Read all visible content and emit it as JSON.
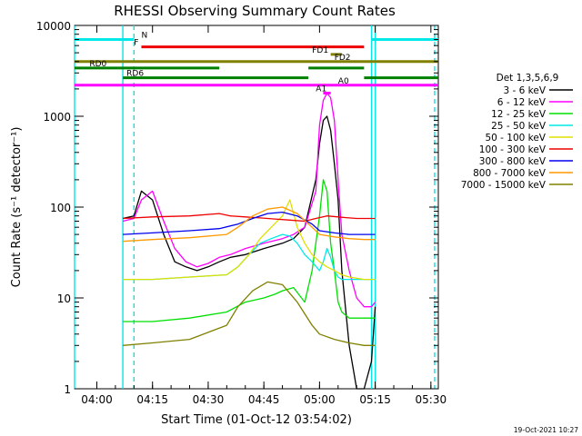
{
  "chart_data": {
    "type": "line",
    "title": "RHESSI Observing Summary Count Rates",
    "xlabel": "Start Time (01-Oct-12 03:54:02)",
    "ylabel": "Count Rate (s⁻¹ detector⁻¹)",
    "yscale": "log",
    "ylim": [
      1,
      10000
    ],
    "xlim": [
      "03:54",
      "05:32"
    ],
    "x_ticks": [
      "04:00",
      "04:15",
      "04:30",
      "04:45",
      "05:00",
      "05:15",
      "05:30"
    ],
    "y_ticks": [
      "1",
      "10",
      "100",
      "1000",
      "10000"
    ],
    "legend_title": "Det 1,3,5,6,9",
    "legend_position": "right",
    "footer_date": "19-Oct-2021 10:27",
    "series": [
      {
        "name": "3 - 6 keV",
        "color": "#000000",
        "x": [
          "04:07",
          "04:10",
          "04:12",
          "04:15",
          "04:18",
          "04:21",
          "04:24",
          "04:27",
          "04:30",
          "04:33",
          "04:36",
          "04:40",
          "04:45",
          "04:50",
          "04:53",
          "04:56",
          "04:59",
          "05:00",
          "05:01",
          "05:02",
          "05:03",
          "05:04",
          "05:05",
          "05:06",
          "05:08",
          "05:10",
          "05:12",
          "05:14",
          "05:15"
        ],
        "y": [
          75,
          80,
          150,
          120,
          50,
          25,
          22,
          20,
          22,
          25,
          28,
          30,
          35,
          40,
          45,
          60,
          200,
          500,
          900,
          1000,
          700,
          300,
          120,
          20,
          3,
          1,
          1,
          2,
          8
        ]
      },
      {
        "name": "6 - 12 keV",
        "color": "#ff00ff",
        "x": [
          "04:07",
          "04:10",
          "04:12",
          "04:15",
          "04:18",
          "04:21",
          "04:24",
          "04:27",
          "04:30",
          "04:33",
          "04:36",
          "04:40",
          "04:45",
          "04:50",
          "04:53",
          "04:56",
          "04:59",
          "05:00",
          "05:01",
          "05:02",
          "05:03",
          "05:04",
          "05:05",
          "05:06",
          "05:08",
          "05:10",
          "05:12",
          "05:14",
          "05:15"
        ],
        "y": [
          70,
          75,
          120,
          150,
          70,
          35,
          25,
          22,
          24,
          28,
          30,
          35,
          40,
          45,
          50,
          60,
          150,
          800,
          1500,
          1800,
          1600,
          900,
          200,
          50,
          20,
          10,
          8,
          8,
          9
        ]
      },
      {
        "name": "12 - 25 keV",
        "color": "#00e000",
        "x": [
          "04:07",
          "04:15",
          "04:25",
          "04:35",
          "04:40",
          "04:45",
          "04:48",
          "04:50",
          "04:53",
          "04:56",
          "04:58",
          "05:00",
          "05:01",
          "05:02",
          "05:03",
          "05:04",
          "05:05",
          "05:06",
          "05:08",
          "05:12",
          "05:14",
          "05:15"
        ],
        "y": [
          5.5,
          5.5,
          6,
          7,
          9,
          10,
          11,
          12,
          13,
          9,
          20,
          80,
          200,
          150,
          40,
          20,
          9,
          7,
          6,
          6,
          6,
          6
        ]
      },
      {
        "name": "25 - 50 keV",
        "color": "#00e8e8",
        "x": [
          "04:07",
          "04:15",
          "04:25",
          "04:35",
          "04:38",
          "04:41",
          "04:44",
          "04:47",
          "04:50",
          "04:52",
          "04:54",
          "04:56",
          "04:58",
          "05:00",
          "05:01",
          "05:02",
          "05:03",
          "05:04",
          "05:05",
          "05:06",
          "05:08",
          "05:12",
          "05:14",
          "05:15"
        ],
        "y": [
          16,
          16,
          17,
          18,
          22,
          30,
          40,
          45,
          50,
          48,
          40,
          30,
          25,
          20,
          25,
          35,
          28,
          20,
          17,
          16,
          16,
          16,
          16,
          16
        ]
      },
      {
        "name": "50 - 100 keV",
        "color": "#e0e000",
        "x": [
          "04:07",
          "04:15",
          "04:25",
          "04:35",
          "04:38",
          "04:41",
          "04:44",
          "04:47",
          "04:50",
          "04:52",
          "04:54",
          "04:56",
          "04:58",
          "05:00",
          "05:02",
          "05:04",
          "05:06",
          "05:08",
          "05:12",
          "05:14",
          "05:15"
        ],
        "y": [
          16,
          16,
          17,
          18,
          22,
          30,
          45,
          60,
          80,
          120,
          60,
          40,
          30,
          25,
          22,
          20,
          18,
          17,
          16,
          16,
          16
        ]
      },
      {
        "name": "100 - 300 keV",
        "color": "#ee0000",
        "x": [
          "04:07",
          "04:15",
          "04:25",
          "04:33",
          "04:36",
          "04:40",
          "04:44",
          "04:48",
          "04:52",
          "04:56",
          "04:59",
          "05:02",
          "05:05",
          "05:08",
          "05:10",
          "05:12",
          "05:14",
          "05:15"
        ],
        "y": [
          75,
          78,
          80,
          85,
          80,
          78,
          76,
          74,
          72,
          70,
          75,
          80,
          78,
          76,
          75,
          75,
          75,
          75
        ]
      },
      {
        "name": "300 - 800 keV",
        "color": "#0000ee",
        "x": [
          "04:07",
          "04:15",
          "04:25",
          "04:33",
          "04:38",
          "04:42",
          "04:46",
          "04:50",
          "04:54",
          "04:58",
          "05:00",
          "05:04",
          "05:08",
          "05:12",
          "05:14",
          "05:15"
        ],
        "y": [
          50,
          52,
          55,
          58,
          65,
          75,
          85,
          88,
          80,
          65,
          55,
          52,
          50,
          50,
          50,
          50
        ]
      },
      {
        "name": "800 - 7000 keV",
        "color": "#ff9900",
        "x": [
          "04:07",
          "04:15",
          "04:25",
          "04:35",
          "04:38",
          "04:42",
          "04:46",
          "04:50",
          "04:54",
          "04:58",
          "05:00",
          "05:04",
          "05:08",
          "05:12",
          "05:14",
          "05:15"
        ],
        "y": [
          42,
          44,
          46,
          50,
          60,
          80,
          95,
          100,
          85,
          60,
          50,
          47,
          45,
          44,
          44,
          44
        ]
      },
      {
        "name": "7000 - 15000 keV",
        "color": "#808000",
        "x": [
          "04:07",
          "04:15",
          "04:25",
          "04:35",
          "04:38",
          "04:42",
          "04:46",
          "04:50",
          "04:54",
          "04:58",
          "05:00",
          "05:04",
          "05:08",
          "05:12",
          "05:14",
          "05:15"
        ],
        "y": [
          3,
          3.2,
          3.5,
          5,
          8,
          12,
          15,
          14,
          9,
          5,
          4,
          3.5,
          3.2,
          3,
          3,
          3
        ]
      }
    ],
    "flags": [
      {
        "label": "N",
        "color": "#00e8e8",
        "y": 7000,
        "x0": "03:54",
        "x1": "04:10",
        "x2": "05:14",
        "x3": "05:32",
        "label_x": "04:12"
      },
      {
        "label": "F",
        "color": "#ee0000",
        "y": 5800,
        "x0": "04:12",
        "x1": "05:12",
        "label_x": "04:10"
      },
      {
        "label": "FD1",
        "color": "#808000",
        "y": 4800,
        "x0": "05:03",
        "x1": "05:06",
        "label_x": "04:58"
      },
      {
        "label": "FD2",
        "color": "#808000",
        "y": 4000,
        "x0": "03:54",
        "x1": "05:32",
        "label_x": "05:04"
      },
      {
        "label": "RD0",
        "color": "#008000",
        "y": 3400,
        "x0": "03:54",
        "x1": "04:33",
        "x2": "04:57",
        "x3": "05:12",
        "label_x": "03:58"
      },
      {
        "label": "RD6",
        "color": "#008000",
        "y": 2650,
        "x0": "04:07",
        "x1": "04:57",
        "x2": "05:12",
        "x3": "05:32",
        "label_x": "04:08"
      },
      {
        "label": "A0",
        "color": "#ff00ff",
        "y": 2200,
        "x0": "03:54",
        "x1": "05:32",
        "label_x": "05:05"
      },
      {
        "label": "A1",
        "color": "#ff00ff",
        "y": 1800,
        "x0": "05:01",
        "x1": "05:03",
        "label_x": "04:59"
      }
    ],
    "vlines": [
      {
        "x": "03:54",
        "color": "#00e8e8",
        "style": "solid"
      },
      {
        "x": "04:07",
        "color": "#00e8e8",
        "style": "solid"
      },
      {
        "x": "04:10",
        "color": "#00e8e8",
        "style": "dashed"
      },
      {
        "x": "05:14",
        "color": "#00e8e8",
        "style": "solid"
      },
      {
        "x": "05:15",
        "color": "#00e8e8",
        "style": "solid"
      },
      {
        "x": "05:31",
        "color": "#00e8e8",
        "style": "dashed"
      }
    ]
  }
}
